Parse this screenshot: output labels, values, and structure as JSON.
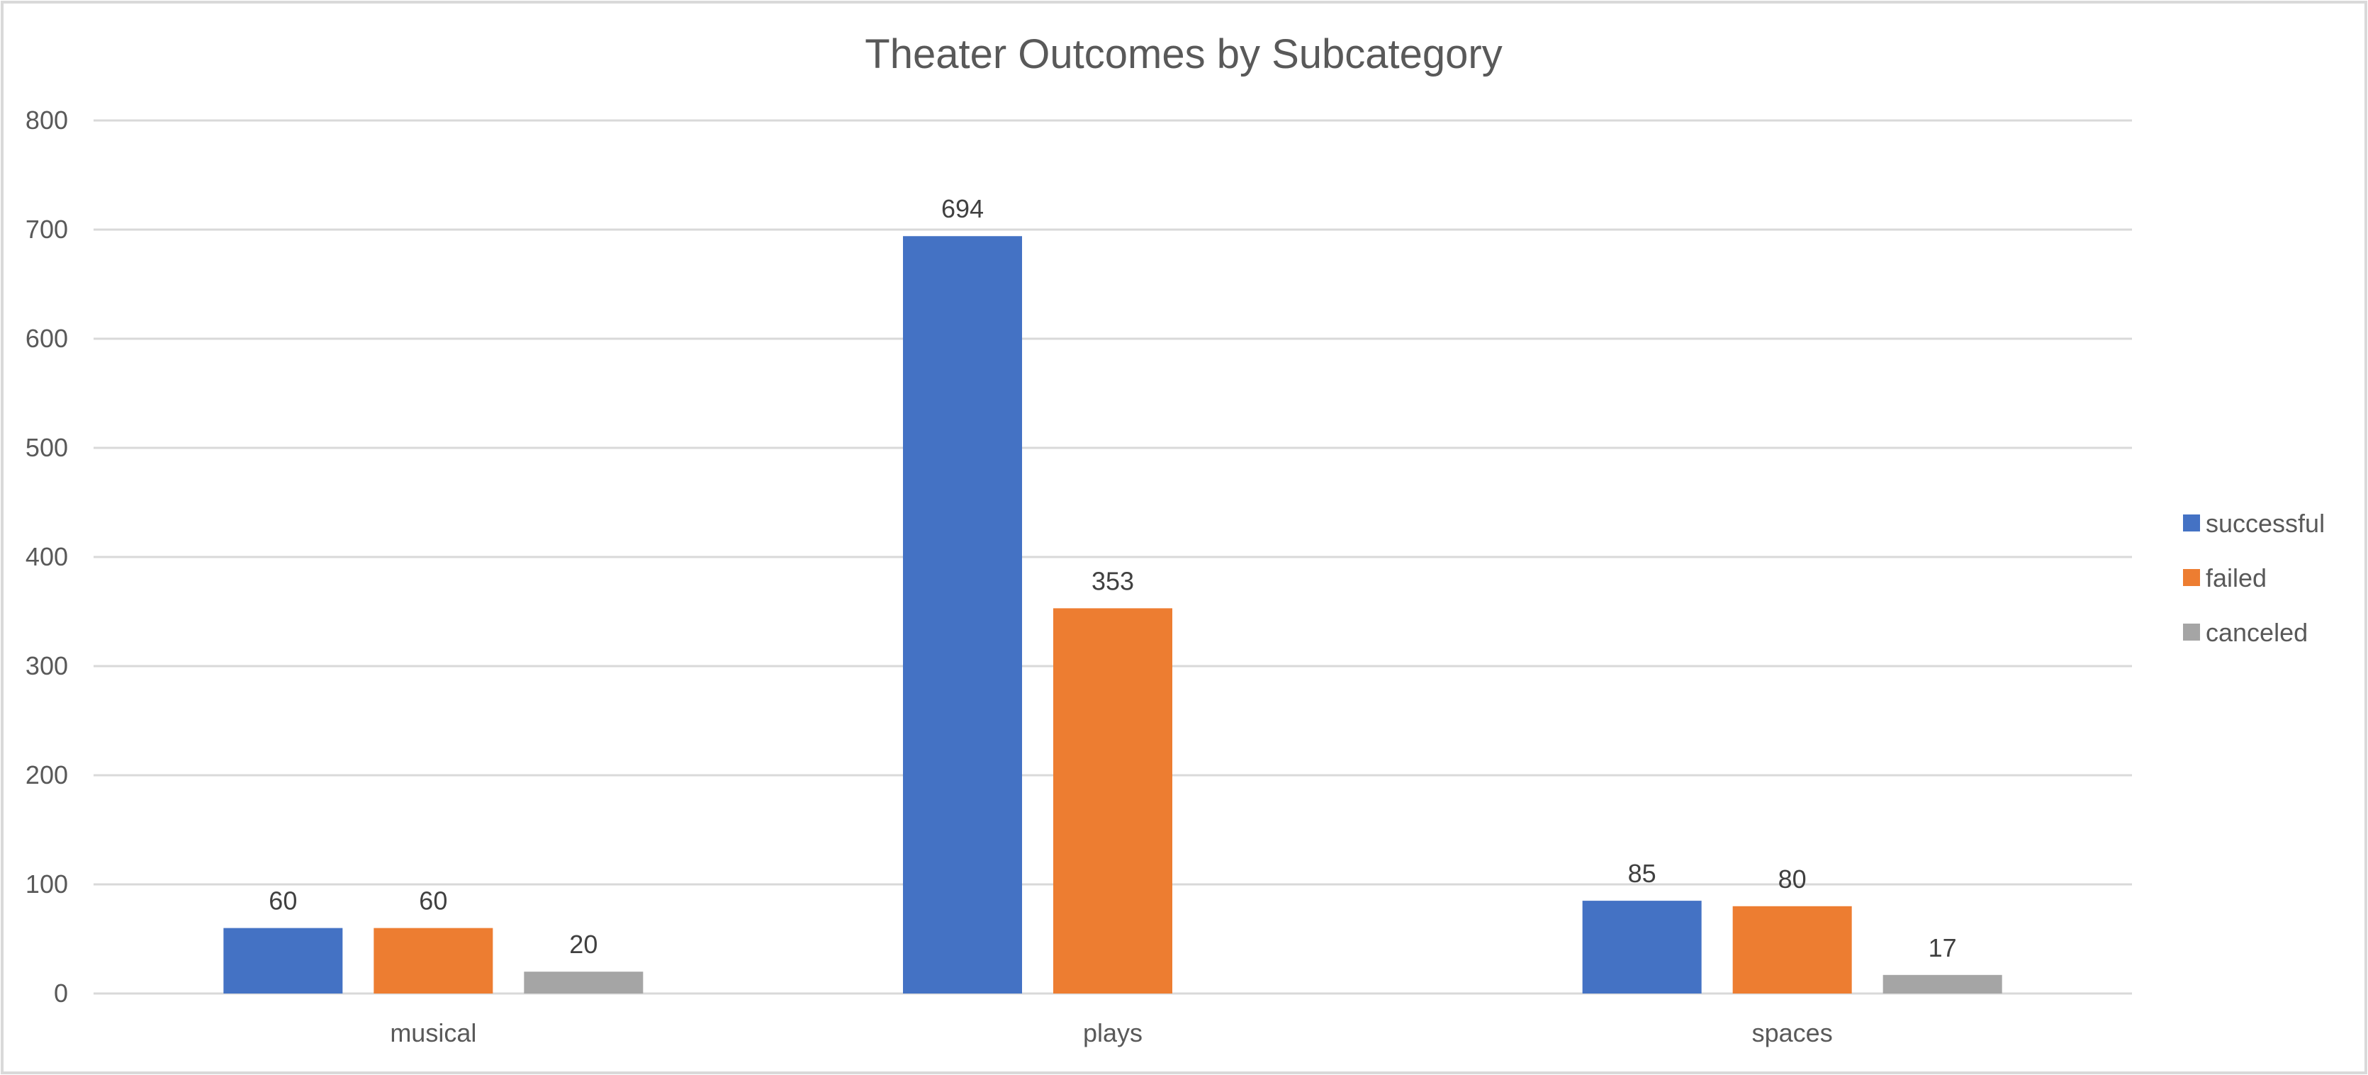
{
  "chart_data": {
    "type": "bar",
    "title": "Theater Outcomes by Subcategory",
    "categories": [
      "musical",
      "plays",
      "spaces"
    ],
    "series": [
      {
        "name": "successful",
        "color": "#4472c4",
        "values": [
          60,
          694,
          85
        ]
      },
      {
        "name": "failed",
        "color": "#ed7d31",
        "values": [
          60,
          353,
          80
        ]
      },
      {
        "name": "canceled",
        "color": "#a5a5a5",
        "values": [
          20,
          null,
          17
        ]
      }
    ],
    "ylim": [
      0,
      800
    ],
    "yticks": [
      0,
      100,
      200,
      300,
      400,
      500,
      600,
      700,
      800
    ],
    "grid": true,
    "legend_position": "right",
    "data_labels": true
  }
}
